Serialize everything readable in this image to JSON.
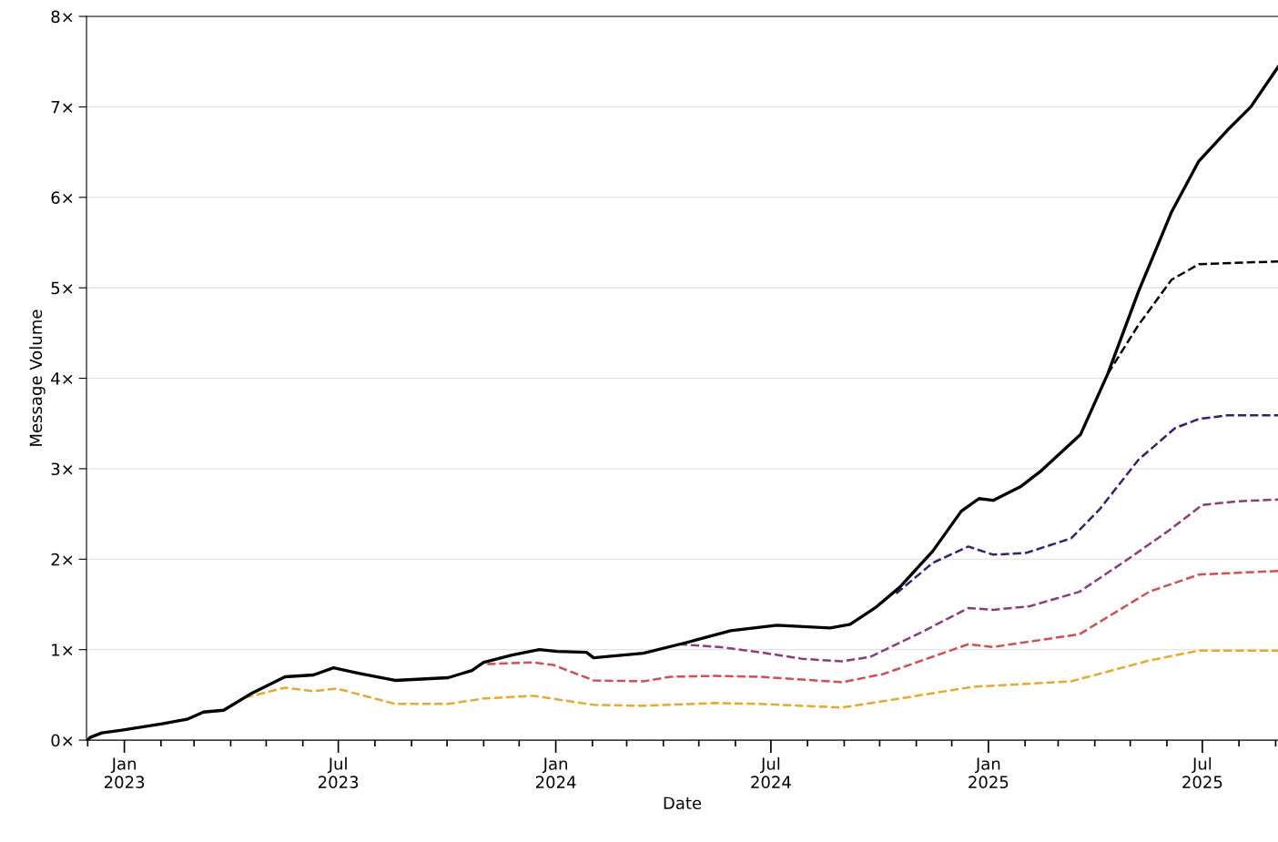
{
  "chart_data": {
    "type": "line",
    "xlabel": "Date",
    "ylabel": "Message Volume",
    "xlim": [
      "2022-11-30",
      "2025-09-03"
    ],
    "ylim": [
      0,
      8
    ],
    "yticks": [
      {
        "value": 0,
        "label": "0×"
      },
      {
        "value": 1,
        "label": "1×"
      },
      {
        "value": 2,
        "label": "2×"
      },
      {
        "value": 3,
        "label": "3×"
      },
      {
        "value": 4,
        "label": "4×"
      },
      {
        "value": 5,
        "label": "5×"
      },
      {
        "value": 6,
        "label": "6×"
      },
      {
        "value": 7,
        "label": "7×"
      },
      {
        "value": 8,
        "label": "8×"
      }
    ],
    "xticks": [
      {
        "value": "2022-12-01",
        "label": null
      },
      {
        "value": "2023-01-01",
        "label": "Jan\n2023"
      },
      {
        "value": "2023-02-01",
        "label": null
      },
      {
        "value": "2023-03-01",
        "label": null
      },
      {
        "value": "2023-04-01",
        "label": null
      },
      {
        "value": "2023-05-01",
        "label": null
      },
      {
        "value": "2023-06-01",
        "label": null
      },
      {
        "value": "2023-07-01",
        "label": "Jul\n2023"
      },
      {
        "value": "2023-08-01",
        "label": null
      },
      {
        "value": "2023-09-01",
        "label": null
      },
      {
        "value": "2023-10-01",
        "label": null
      },
      {
        "value": "2023-11-01",
        "label": null
      },
      {
        "value": "2023-12-01",
        "label": null
      },
      {
        "value": "2024-01-01",
        "label": "Jan\n2024"
      },
      {
        "value": "2024-02-01",
        "label": null
      },
      {
        "value": "2024-03-01",
        "label": null
      },
      {
        "value": "2024-04-01",
        "label": null
      },
      {
        "value": "2024-05-01",
        "label": null
      },
      {
        "value": "2024-06-01",
        "label": null
      },
      {
        "value": "2024-07-01",
        "label": "Jul\n2024"
      },
      {
        "value": "2024-08-01",
        "label": null
      },
      {
        "value": "2024-09-01",
        "label": null
      },
      {
        "value": "2024-10-01",
        "label": null
      },
      {
        "value": "2024-11-01",
        "label": null
      },
      {
        "value": "2024-12-01",
        "label": null
      },
      {
        "value": "2025-01-01",
        "label": "Jan\n2025"
      },
      {
        "value": "2025-02-01",
        "label": null
      },
      {
        "value": "2025-03-01",
        "label": null
      },
      {
        "value": "2025-04-01",
        "label": null
      },
      {
        "value": "2025-05-01",
        "label": null
      },
      {
        "value": "2025-06-01",
        "label": null
      },
      {
        "value": "2025-07-01",
        "label": "Jul\n2025"
      },
      {
        "value": "2025-08-01",
        "label": null
      },
      {
        "value": "2025-09-01",
        "label": null
      }
    ],
    "grid": "y",
    "series": [
      {
        "color": "#e8a830",
        "line_style": "dashed",
        "x": [
          "2023-04-13",
          "2023-05-17",
          "2023-06-10",
          "2023-06-30",
          "2023-08-18",
          "2023-10-02",
          "2023-11-01",
          "2023-12-13",
          "2024-02-02",
          "2024-03-15",
          "2024-05-15",
          "2024-06-22",
          "2024-08-30",
          "2024-10-04",
          "2024-12-19",
          "2025-03-12",
          "2025-05-17",
          "2025-06-28",
          "2025-09-03"
        ],
        "values": [
          0.47,
          0.58,
          0.54,
          0.57,
          0.4,
          0.4,
          0.46,
          0.49,
          0.39,
          0.38,
          0.41,
          0.4,
          0.36,
          0.43,
          0.59,
          0.65,
          0.88,
          0.99,
          0.99
        ]
      },
      {
        "color": "#d0504f",
        "line_style": "dashed",
        "x": [
          "2023-11-04",
          "2023-12-13",
          "2023-12-30",
          "2024-02-02",
          "2024-03-15",
          "2024-04-07",
          "2024-05-15",
          "2024-06-22",
          "2024-08-30",
          "2024-10-04",
          "2024-12-15",
          "2025-01-05",
          "2025-03-19",
          "2025-05-17",
          "2025-06-28",
          "2025-09-03"
        ],
        "values": [
          0.84,
          0.86,
          0.83,
          0.66,
          0.65,
          0.7,
          0.71,
          0.7,
          0.64,
          0.73,
          1.06,
          1.03,
          1.17,
          1.64,
          1.83,
          1.87
        ]
      },
      {
        "color": "#8c3c7c",
        "line_style": "dashed",
        "x": [
          "2024-04-14",
          "2024-05-18",
          "2024-06-22",
          "2024-07-27",
          "2024-08-30",
          "2024-09-23",
          "2024-11-08",
          "2024-12-15",
          "2025-01-05",
          "2025-02-05",
          "2025-03-19",
          "2025-04-29",
          "2025-06-03",
          "2025-07-01",
          "2025-07-31",
          "2025-09-03"
        ],
        "values": [
          1.06,
          1.03,
          0.97,
          0.9,
          0.87,
          0.92,
          1.21,
          1.46,
          1.44,
          1.48,
          1.64,
          2.0,
          2.32,
          2.6,
          2.64,
          2.66
        ]
      },
      {
        "color": "#3b1f6e",
        "line_style": "dashed",
        "x": [
          "2024-10-15",
          "2024-11-15",
          "2024-12-15",
          "2025-01-05",
          "2025-02-02",
          "2025-03-12",
          "2025-04-05",
          "2025-05-08",
          "2025-06-08",
          "2025-06-28",
          "2025-07-22",
          "2025-09-03"
        ],
        "values": [
          1.62,
          1.96,
          2.14,
          2.05,
          2.07,
          2.23,
          2.55,
          3.1,
          3.45,
          3.55,
          3.59,
          3.59
        ]
      },
      {
        "color": "#000000",
        "line_style": "dashed",
        "x": [
          "2025-04-12",
          "2025-05-08",
          "2025-06-05",
          "2025-06-28",
          "2025-08-06",
          "2025-09-03"
        ],
        "values": [
          4.05,
          4.59,
          5.09,
          5.26,
          5.28,
          5.29
        ]
      },
      {
        "color": "#000000",
        "line_style": "solid",
        "x": [
          "2022-12-01",
          "2022-12-03",
          "2022-12-13",
          "2022-12-30",
          "2023-02-02",
          "2023-02-23",
          "2023-03-09",
          "2023-03-26",
          "2023-04-19",
          "2023-05-17",
          "2023-06-10",
          "2023-06-27",
          "2023-07-18",
          "2023-08-18",
          "2023-10-02",
          "2023-10-22",
          "2023-11-01",
          "2023-11-25",
          "2023-12-18",
          "2024-01-02",
          "2024-01-27",
          "2024-02-02",
          "2024-03-15",
          "2024-04-21",
          "2024-05-28",
          "2024-07-06",
          "2024-08-20",
          "2024-09-06",
          "2024-09-27",
          "2024-10-18",
          "2024-11-15",
          "2024-12-09",
          "2024-12-24",
          "2025-01-05",
          "2025-01-28",
          "2025-02-14",
          "2025-03-20",
          "2025-04-12",
          "2025-05-08",
          "2025-06-05",
          "2025-06-28",
          "2025-07-22",
          "2025-08-11",
          "2025-09-03"
        ],
        "values": [
          0.0,
          0.03,
          0.08,
          0.11,
          0.18,
          0.23,
          0.31,
          0.33,
          0.52,
          0.7,
          0.72,
          0.8,
          0.74,
          0.66,
          0.69,
          0.77,
          0.86,
          0.94,
          1.0,
          0.98,
          0.97,
          0.91,
          0.96,
          1.08,
          1.21,
          1.27,
          1.24,
          1.28,
          1.46,
          1.69,
          2.09,
          2.53,
          2.67,
          2.65,
          2.8,
          2.97,
          3.38,
          4.05,
          4.96,
          5.84,
          6.4,
          6.74,
          7.0,
          7.44
        ]
      }
    ]
  }
}
